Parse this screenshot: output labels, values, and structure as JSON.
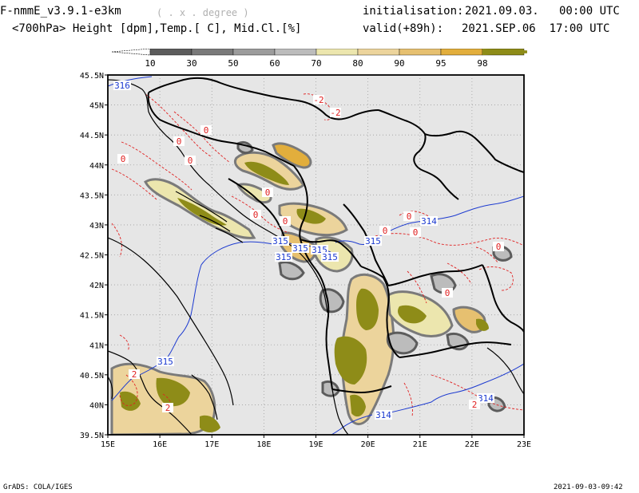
{
  "header": {
    "model_title": "F-nmmE_v3.9.1-e3km",
    "projection_note": "( . x . degree )",
    "field_description": "<700hPa> Height [dpm],Temp.[ C], Mid.Cl.[%]",
    "init_label": "initialisation:",
    "init_value": "2021.09.03.   00:00 UTC",
    "valid_label": "valid(+89h):",
    "valid_value": "2021.SEP.06  17:00 UTC"
  },
  "colorbar": {
    "ticks": [
      "10",
      "30",
      "50",
      "60",
      "70",
      "80",
      "90",
      "95",
      "98"
    ],
    "colors": [
      "#5c5c5c",
      "#7a7a7a",
      "#9c9c9c",
      "#bcbcbc",
      "#ece6ae",
      "#ecd49c",
      "#e6c070",
      "#e2ae3c",
      "#8e8c18"
    ]
  },
  "map": {
    "lon_range": [
      15,
      23
    ],
    "lat_range": [
      39.5,
      45.5
    ],
    "lon_labels": [
      "15E",
      "16E",
      "17E",
      "18E",
      "19E",
      "20E",
      "21E",
      "22E",
      "23E"
    ],
    "lat_labels": [
      "39.5N",
      "40N",
      "40.5N",
      "41N",
      "41.5N",
      "42N",
      "42.5N",
      "43N",
      "43.5N",
      "44N",
      "44.5N",
      "45N",
      "45.5N"
    ],
    "height_contours": [
      "316",
      "315",
      "315",
      "315",
      "315",
      "315",
      "315",
      "315",
      "314",
      "314",
      "314"
    ],
    "temp_labels": [
      "-2",
      "-2",
      "0",
      "0",
      "0",
      "0",
      "0",
      "0",
      "0",
      "0",
      "0",
      "0",
      "0",
      "0",
      "2",
      "2",
      "2"
    ],
    "background_color": "#e6e6e6",
    "height_color": "#1c3ad0",
    "temp_color": "#e02020"
  },
  "footer": {
    "left": "GrADS: COLA/IGES",
    "right": "2021-09-03-09:42"
  }
}
